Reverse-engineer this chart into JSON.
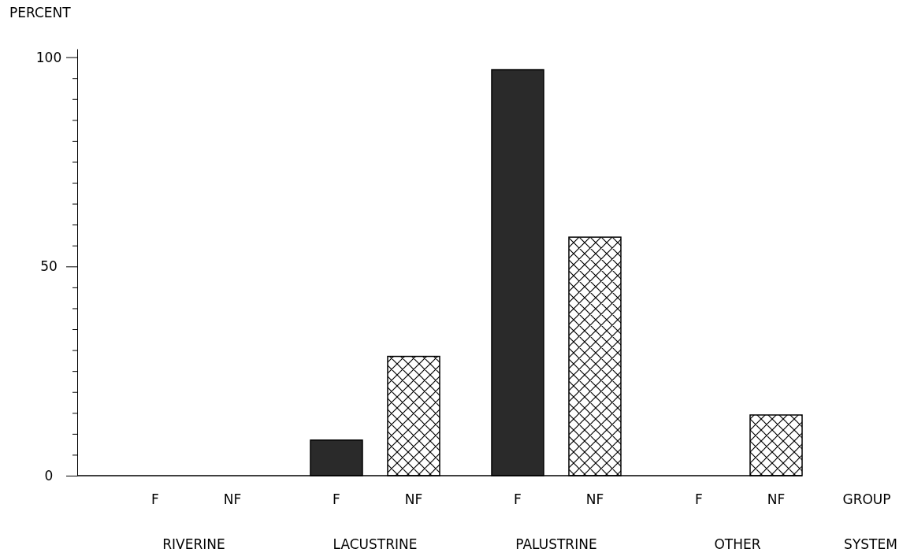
{
  "chart_data": {
    "type": "bar",
    "ylabel": "PERCENT",
    "xlabel": "SYSTEM",
    "annotations": [
      "GROUP"
    ],
    "categories": [
      "RIVERINE",
      "LACUSTRINE",
      "PALUSTRINE",
      "OTHER"
    ],
    "series": [
      {
        "name": "F",
        "color": "#2a2a2a",
        "values": [
          0,
          8.5,
          97,
          0
        ]
      },
      {
        "name": "NF",
        "color": "#000000",
        "values": [
          0,
          28.5,
          57,
          14.5
        ]
      }
    ],
    "ylim": [
      0,
      102
    ],
    "yticks": [
      0,
      {
        "value": 5,
        "label": null
      },
      {
        "value": 10,
        "label": null
      },
      {
        "value": 15,
        "label": null
      },
      {
        "value": 20,
        "label": null
      },
      {
        "value": 25,
        "label": null
      },
      {
        "value": 30,
        "label": null
      },
      {
        "value": 35,
        "label": null
      },
      {
        "value": 40,
        "label": null
      },
      {
        "value": 45,
        "label": null
      },
      50,
      {
        "value": 55,
        "label": null
      },
      {
        "value": 60,
        "label": null
      },
      {
        "value": 65,
        "label": null
      },
      {
        "value": 70,
        "label": null
      },
      {
        "value": 75,
        "label": null
      },
      {
        "value": 80,
        "label": null
      },
      {
        "value": 85,
        "label": null
      },
      {
        "value": 90,
        "label": null
      },
      {
        "value": 95,
        "label": null
      },
      100
    ],
    "grid": false
  }
}
